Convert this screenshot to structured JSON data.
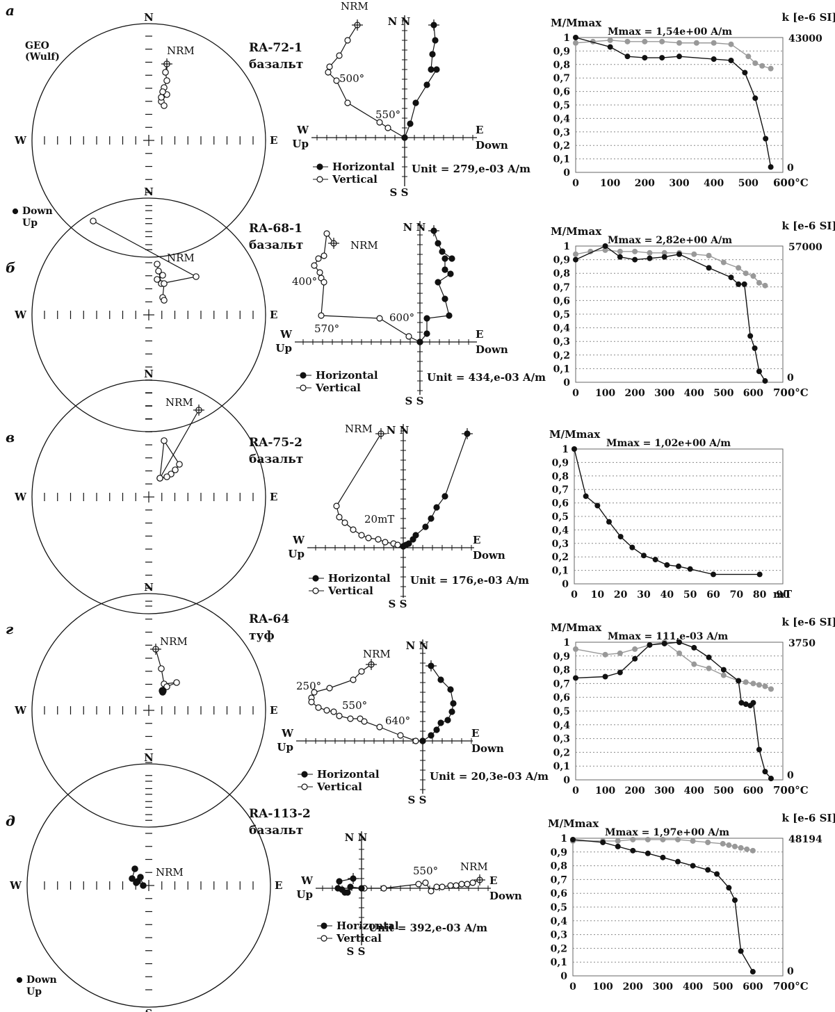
{
  "stereonet_legend": {
    "down": "Down",
    "up": "Up"
  },
  "compass": {
    "n": "N",
    "s": "S",
    "w": "W",
    "e": "E"
  },
  "zijd_axis": {
    "n": "N",
    "s": "S",
    "w": "W",
    "e": "E",
    "up": "Up",
    "down": "Down",
    "horizontal": "Horizontal",
    "vertical": "Vertical"
  },
  "rows": [
    {
      "letter": "а",
      "sample": "RA-72-1",
      "rock": "базальт",
      "projection_label": "GEO\n(Wulf)",
      "show_legend_top": true,
      "show_legend_bottom": false,
      "stereo_nrm": "NRM",
      "zijd_unit": "Unit = 279,e-03 A/m",
      "zijd_labels": [
        "NRM",
        "500°",
        "550°"
      ],
      "chart": {
        "ylabel": "M/Mmax",
        "mmax": "Mmax = 1,54e+00 A/m",
        "klabel": "k [e-6 SI]",
        "kmax": "43000",
        "kmin": "0",
        "xunit": "600°C",
        "xticks": [
          "0",
          "100",
          "200",
          "300",
          "400",
          "500"
        ],
        "yticks": [
          "0",
          "0,1",
          "0,2",
          "0,3",
          "0,4",
          "0,5",
          "0,6",
          "0,7",
          "0,8",
          "0,9",
          "1"
        ]
      }
    },
    {
      "letter": "б",
      "sample": "RA-68-1",
      "rock": "базальт",
      "show_legend_top": false,
      "show_legend_bottom": false,
      "stereo_nrm": "NRM",
      "zijd_unit": "Unit = 434,e-03 A/m",
      "zijd_labels": [
        "NRM",
        "400°",
        "570°",
        "600°"
      ],
      "chart": {
        "ylabel": "M/Mmax",
        "mmax": "Mmax = 2,82e+00 A/m",
        "klabel": "k [e-6 SI]",
        "kmax": "57000",
        "kmin": "0",
        "xunit": "700°C",
        "xticks": [
          "0",
          "100",
          "200",
          "300",
          "400",
          "500",
          "600"
        ],
        "yticks": [
          "0",
          "0,1",
          "0,2",
          "0,3",
          "0,4",
          "0,5",
          "0,6",
          "0,7",
          "0,8",
          "0,9",
          "1"
        ]
      }
    },
    {
      "letter": "в",
      "sample": "RA-75-2",
      "rock": "базальт",
      "show_legend_top": false,
      "show_legend_bottom": false,
      "stereo_nrm": "NRM",
      "zijd_unit": "Unit = 176,e-03 A/m",
      "zijd_labels": [
        "NRM",
        "20mT"
      ],
      "chart": {
        "ylabel": "M/Mmax",
        "mmax": "Mmax = 1,02e+00 A/m",
        "xunit": "mT",
        "xticks": [
          "0",
          "10",
          "20",
          "30",
          "40",
          "50",
          "60",
          "70",
          "80",
          "90"
        ],
        "yticks": [
          "0",
          "0,1",
          "0,2",
          "0,3",
          "0,4",
          "0,5",
          "0,6",
          "0,7",
          "0,8",
          "0,9",
          "1"
        ]
      }
    },
    {
      "letter": "г",
      "sample": "RA-64",
      "rock": "туф",
      "show_legend_top": false,
      "show_legend_bottom": false,
      "stereo_nrm": "NRM",
      "zijd_unit": "Unit = 20,3e-03 A/m",
      "zijd_labels": [
        "NRM",
        "250°",
        "550°",
        "640°"
      ],
      "chart": {
        "ylabel": "M/Mmax",
        "mmax": "Mmax = 111,e-03 A/m",
        "klabel": "k [e-6 SI]",
        "kmax": "3750",
        "kmin": "0",
        "xunit": "700°C",
        "xticks": [
          "0",
          "100",
          "200",
          "300",
          "400",
          "500",
          "600"
        ],
        "yticks": [
          "0",
          "0,1",
          "0,2",
          "0,3",
          "0,4",
          "0,5",
          "0,6",
          "0,7",
          "0,8",
          "0,9",
          "1"
        ]
      }
    },
    {
      "letter": "д",
      "sample": "RA-113-2",
      "rock": "базальт",
      "show_legend_top": false,
      "show_legend_bottom": true,
      "stereo_nrm": "NRM",
      "zijd_unit": "Unit = 392,e-03 A/m",
      "zijd_labels": [
        "550°",
        "NRM"
      ],
      "chart": {
        "ylabel": "M/Mmax",
        "mmax": "Mmax = 1,97e+00 A/m",
        "klabel": "k [e-6 SI]",
        "kmax": "48194",
        "kmin": "0",
        "xunit": "700°C",
        "xticks": [
          "0",
          "100",
          "200",
          "300",
          "400",
          "500",
          "600"
        ],
        "yticks": [
          "0",
          "0,1",
          "0,2",
          "0,3",
          "0,4",
          "0,5",
          "0,6",
          "0,7",
          "0,8",
          "0,9",
          "1"
        ]
      }
    }
  ],
  "chart_data": [
    {
      "type": "line",
      "title": "",
      "xlabel": "",
      "ylabel": "M/Mmax",
      "xlim": [
        0,
        600
      ],
      "ylim": [
        0,
        1
      ],
      "grid": true,
      "legend": "none",
      "series": [
        {
          "axis": "left",
          "color": "#111111",
          "x": [
            0,
            100,
            150,
            200,
            250,
            300,
            400,
            450,
            490,
            520,
            550,
            565
          ],
          "y": [
            1,
            0.93,
            0.86,
            0.85,
            0.85,
            0.86,
            0.84,
            0.83,
            0.74,
            0.55,
            0.25,
            0.04
          ]
        },
        {
          "axis": "right",
          "color": "#999999",
          "x": [
            0,
            50,
            100,
            150,
            200,
            250,
            300,
            350,
            400,
            450,
            500,
            520,
            540,
            565
          ],
          "y": [
            0.96,
            0.97,
            0.98,
            0.97,
            0.97,
            0.97,
            0.96,
            0.96,
            0.96,
            0.95,
            0.86,
            0.81,
            0.79,
            0.77
          ]
        }
      ]
    },
    {
      "type": "line",
      "title": "",
      "xlabel": "",
      "ylabel": "M/Mmax",
      "xlim": [
        0,
        700
      ],
      "ylim": [
        0,
        1
      ],
      "grid": true,
      "legend": "none",
      "series": [
        {
          "axis": "left",
          "color": "#111111",
          "x": [
            0,
            100,
            150,
            200,
            250,
            300,
            350,
            450,
            525,
            550,
            570,
            590,
            605,
            620,
            640
          ],
          "y": [
            0.9,
            1,
            0.92,
            0.9,
            0.91,
            0.92,
            0.94,
            0.84,
            0.77,
            0.72,
            0.72,
            0.34,
            0.25,
            0.08,
            0.01
          ]
        },
        {
          "axis": "right",
          "color": "#999999",
          "x": [
            0,
            50,
            100,
            150,
            200,
            250,
            300,
            350,
            400,
            450,
            500,
            550,
            575,
            600,
            620,
            640
          ],
          "y": [
            0.94,
            0.96,
            0.97,
            0.96,
            0.96,
            0.95,
            0.95,
            0.95,
            0.94,
            0.93,
            0.88,
            0.84,
            0.8,
            0.78,
            0.73,
            0.71
          ]
        }
      ]
    },
    {
      "type": "line",
      "title": "",
      "xlabel": "",
      "ylabel": "M/Mmax",
      "xlim": [
        0,
        90
      ],
      "ylim": [
        0,
        1
      ],
      "grid": true,
      "legend": "none",
      "series": [
        {
          "axis": "left",
          "color": "#111111",
          "x": [
            0,
            5,
            10,
            15,
            20,
            25,
            30,
            35,
            40,
            45,
            50,
            60,
            80
          ],
          "y": [
            1,
            0.65,
            0.58,
            0.46,
            0.35,
            0.27,
            0.21,
            0.18,
            0.14,
            0.13,
            0.11,
            0.07,
            0.07
          ]
        }
      ]
    },
    {
      "type": "line",
      "title": "",
      "xlabel": "",
      "ylabel": "M/Mmax",
      "xlim": [
        0,
        700
      ],
      "ylim": [
        0,
        1
      ],
      "grid": true,
      "legend": "none",
      "series": [
        {
          "axis": "left",
          "color": "#111111",
          "x": [
            0,
            100,
            150,
            200,
            250,
            300,
            350,
            400,
            450,
            500,
            550,
            560,
            575,
            590,
            600,
            620,
            640,
            660
          ],
          "y": [
            0.74,
            0.75,
            0.78,
            0.88,
            0.98,
            0.99,
            1,
            0.96,
            0.89,
            0.8,
            0.72,
            0.56,
            0.55,
            0.54,
            0.56,
            0.22,
            0.06,
            0.01
          ]
        },
        {
          "axis": "right",
          "color": "#999999",
          "x": [
            0,
            100,
            150,
            200,
            250,
            300,
            350,
            400,
            450,
            500,
            550,
            575,
            600,
            620,
            640,
            660
          ],
          "y": [
            0.95,
            0.91,
            0.92,
            0.95,
            0.98,
            1,
            0.92,
            0.84,
            0.81,
            0.76,
            0.72,
            0.71,
            0.7,
            0.69,
            0.68,
            0.66
          ]
        }
      ]
    },
    {
      "type": "line",
      "title": "",
      "xlabel": "",
      "ylabel": "M/Mmax",
      "xlim": [
        0,
        700
      ],
      "ylim": [
        0,
        1
      ],
      "grid": true,
      "legend": "none",
      "series": [
        {
          "axis": "left",
          "color": "#111111",
          "x": [
            0,
            100,
            150,
            200,
            250,
            300,
            350,
            400,
            450,
            480,
            520,
            540,
            560,
            600
          ],
          "y": [
            0.99,
            0.97,
            0.94,
            0.91,
            0.89,
            0.86,
            0.83,
            0.8,
            0.77,
            0.74,
            0.64,
            0.55,
            0.18,
            0.03
          ]
        },
        {
          "axis": "right",
          "color": "#999999",
          "x": [
            0,
            100,
            150,
            200,
            250,
            300,
            350,
            400,
            450,
            500,
            520,
            540,
            560,
            580,
            600
          ],
          "y": [
            0.98,
            0.98,
            0.98,
            0.99,
            0.99,
            0.99,
            0.99,
            0.98,
            0.97,
            0.96,
            0.95,
            0.94,
            0.93,
            0.92,
            0.91
          ]
        }
      ]
    }
  ]
}
